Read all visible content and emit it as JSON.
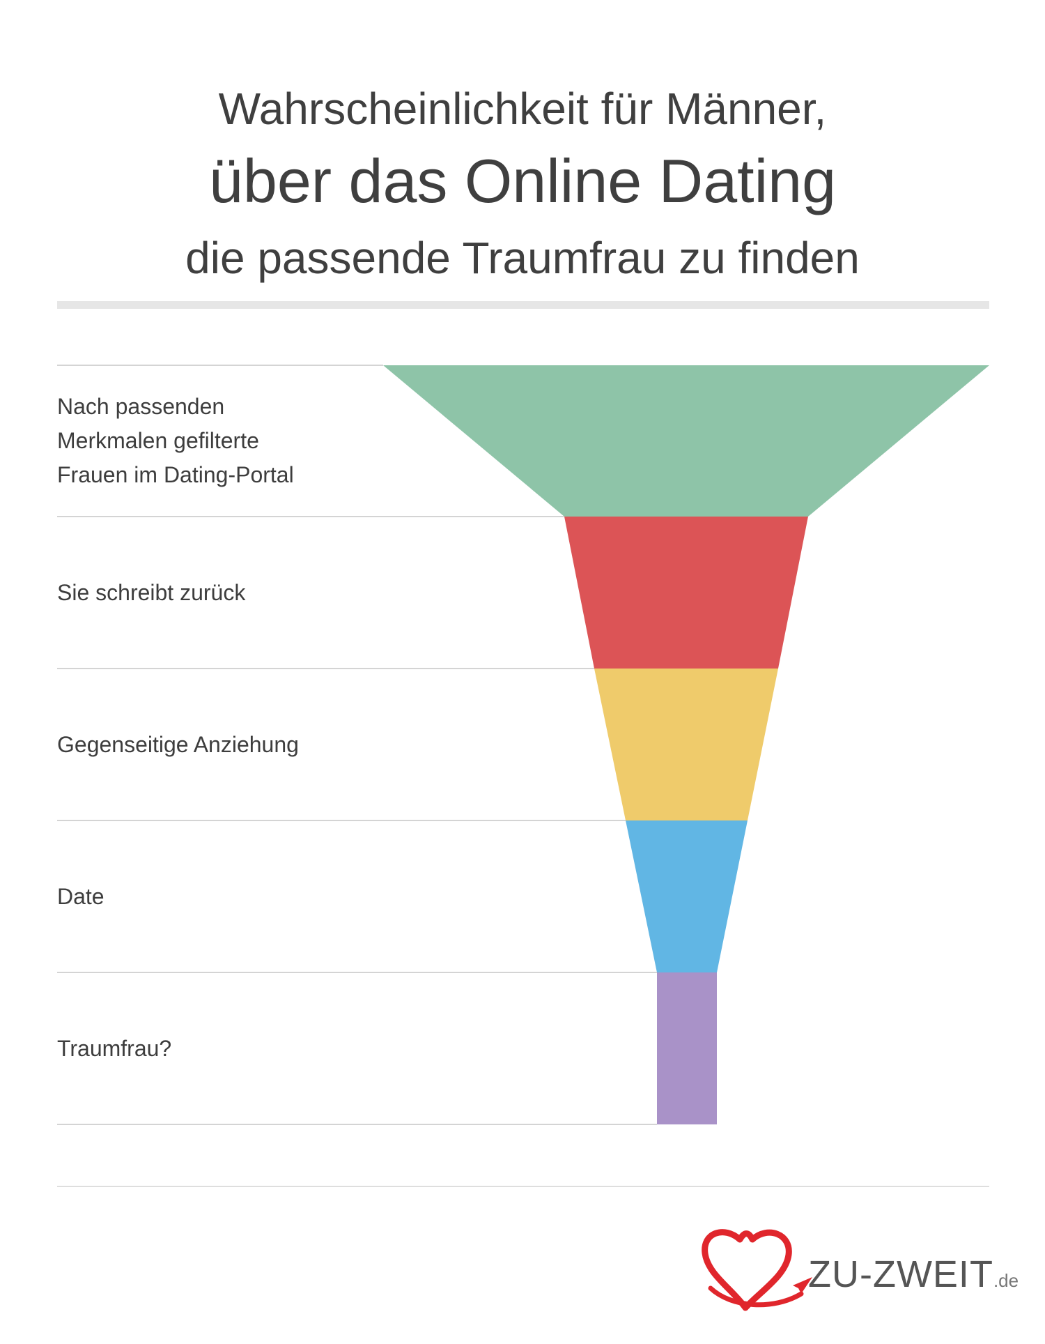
{
  "title": {
    "line1": "Wahrscheinlichkeit für Männer,",
    "line2": "über das Online Dating",
    "line3": "die passende Traumfrau zu finden"
  },
  "chart_data": {
    "type": "funnel",
    "stages": [
      {
        "label": "Nach passenden\nMerkmalen gefilterte\nFrauen im Dating-Portal",
        "color": "#8ec4a8"
      },
      {
        "label": "Sie schreibt zurück",
        "color": "#dc5456"
      },
      {
        "label": "Gegenseitige Anziehung",
        "color": "#efcb6b"
      },
      {
        "label": "Date",
        "color": "#61b6e4"
      },
      {
        "label": "Traumfrau?",
        "color": "#a992c8"
      }
    ]
  },
  "logo": {
    "name": "ZU-ZWEIT",
    "tld": ".de",
    "heart_color": "#e0262c"
  }
}
